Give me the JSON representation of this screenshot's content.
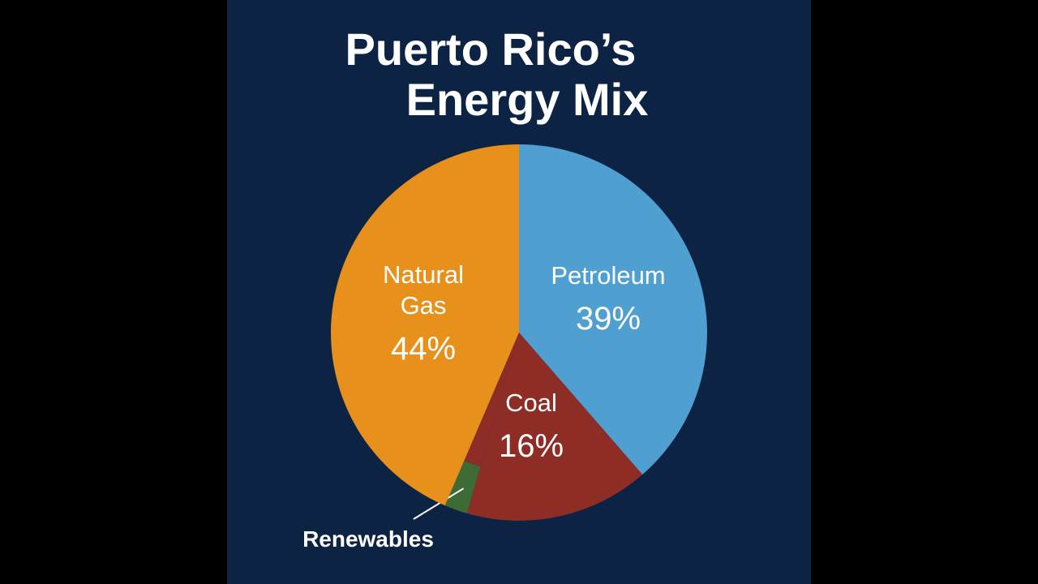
{
  "chart_data": {
    "type": "pie",
    "title": "Puerto Rico’s Energy Mix",
    "title_lines": [
      "Puerto Rico’s",
      "Energy Mix"
    ],
    "slices": [
      {
        "label": "Petroleum",
        "label_lines": [
          "Petroleum"
        ],
        "value": 39,
        "value_label": "39%",
        "color": "#4f9fd0"
      },
      {
        "label": "Coal",
        "label_lines": [
          "Coal"
        ],
        "value": 16,
        "value_label": "16%",
        "color": "#8e2c26"
      },
      {
        "label": "Renewables",
        "label_lines": [],
        "value": 2,
        "value_label": "",
        "color": "#3d6a35",
        "callout": "Renewables"
      },
      {
        "label": "Natural Gas",
        "label_lines": [
          "Natural",
          "Gas"
        ],
        "value": 44,
        "value_label": "44%",
        "color": "#e8901c"
      }
    ],
    "start_angle": "12 o'clock, clockwise"
  },
  "colors": {
    "page_background": "#000000",
    "panel_background": "#0c2344",
    "text": "#ffffff"
  }
}
